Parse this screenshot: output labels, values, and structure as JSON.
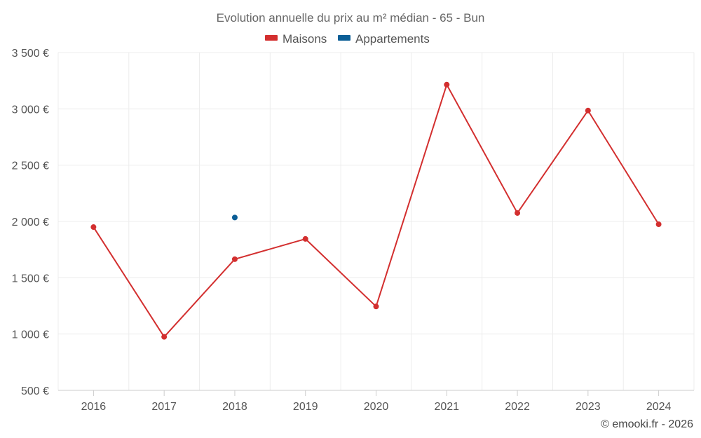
{
  "chart_data": {
    "type": "line",
    "title": "Evolution annuelle du prix au m² médian - 65 - Bun",
    "categories": [
      "2016",
      "2017",
      "2018",
      "2019",
      "2020",
      "2021",
      "2022",
      "2023",
      "2024"
    ],
    "series": [
      {
        "name": "Maisons",
        "color": "#d32f2f",
        "values": [
          1950,
          975,
          1665,
          1845,
          1245,
          3215,
          2075,
          2985,
          1975
        ]
      },
      {
        "name": "Appartements",
        "color": "#0b5e96",
        "values": [
          null,
          null,
          2035,
          null,
          null,
          null,
          null,
          null,
          null
        ]
      }
    ],
    "ylim": [
      500,
      3500
    ],
    "yticks": [
      500,
      1000,
      1500,
      2000,
      2500,
      3000,
      3500
    ],
    "ytick_labels": [
      "500 €",
      "1 000 €",
      "1 500 €",
      "2 000 €",
      "2 500 €",
      "3 000 €",
      "3 500 €"
    ],
    "xlabel": "",
    "ylabel": "",
    "grid": true,
    "legend_position": "top-center"
  },
  "credit": "© emooki.fr - 2026"
}
